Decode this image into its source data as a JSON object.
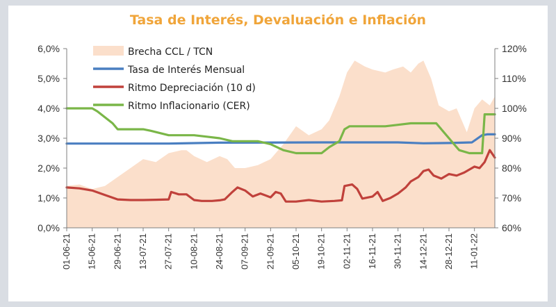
{
  "chart_data": {
    "type": "line",
    "title": "Tasa de Interés, Devaluación e Inflación",
    "x": [
      "01-06-21",
      "15-06-21",
      "29-06-21",
      "13-07-21",
      "27-07-21",
      "10-08-21",
      "24-08-21",
      "07-09-21",
      "21-09-21",
      "05-10-21",
      "19-10-21",
      "02-11-21",
      "16-11-21",
      "30-11-21",
      "14-12-21",
      "28-12-21",
      "11-01-22"
    ],
    "x_end": 16.8,
    "y_left": {
      "ticks": [
        "0,0%",
        "1,0%",
        "2,0%",
        "3,0%",
        "4,0%",
        "5,0%",
        "6,0%"
      ],
      "range": [
        0,
        6
      ]
    },
    "y_right": {
      "ticks": [
        "60%",
        "70%",
        "80%",
        "90%",
        "100%",
        "110%",
        "120%"
      ],
      "range": [
        60,
        120
      ]
    },
    "series": [
      {
        "name": "Brecha CCL / TCN",
        "kind": "area",
        "axis": "right",
        "color": "#fbdfcb",
        "points": [
          [
            0,
            74
          ],
          [
            0.5,
            74.5
          ],
          [
            1,
            73
          ],
          [
            1.5,
            74
          ],
          [
            2,
            77
          ],
          [
            2.5,
            80
          ],
          [
            3,
            83
          ],
          [
            3.5,
            82
          ],
          [
            4,
            85
          ],
          [
            4.5,
            86
          ],
          [
            4.7,
            86
          ],
          [
            5,
            84
          ],
          [
            5.5,
            82
          ],
          [
            6,
            84
          ],
          [
            6.3,
            83
          ],
          [
            6.6,
            80
          ],
          [
            7,
            80
          ],
          [
            7.5,
            81
          ],
          [
            8,
            83
          ],
          [
            8.5,
            88
          ],
          [
            9,
            94
          ],
          [
            9.5,
            91
          ],
          [
            10,
            93
          ],
          [
            10.3,
            96
          ],
          [
            10.7,
            104
          ],
          [
            11,
            112
          ],
          [
            11.3,
            116
          ],
          [
            11.7,
            114
          ],
          [
            12,
            113
          ],
          [
            12.5,
            112
          ],
          [
            12.8,
            113
          ],
          [
            13.2,
            114
          ],
          [
            13.5,
            112
          ],
          [
            13.8,
            115
          ],
          [
            14,
            116
          ],
          [
            14.3,
            110
          ],
          [
            14.6,
            101
          ],
          [
            15,
            99
          ],
          [
            15.3,
            100
          ],
          [
            15.7,
            92
          ],
          [
            16,
            100
          ],
          [
            16.3,
            103
          ],
          [
            16.6,
            101
          ],
          [
            16.8,
            104
          ]
        ]
      },
      {
        "name": "Tasa de Interés Mensual",
        "kind": "line",
        "axis": "left",
        "color": "#4a7fc1",
        "points": [
          [
            0,
            2.82
          ],
          [
            4,
            2.82
          ],
          [
            6,
            2.85
          ],
          [
            10,
            2.86
          ],
          [
            13,
            2.86
          ],
          [
            14,
            2.83
          ],
          [
            15,
            2.84
          ],
          [
            15.9,
            2.86
          ],
          [
            16.3,
            3.1
          ],
          [
            16.5,
            3.13
          ],
          [
            16.8,
            3.13
          ]
        ]
      },
      {
        "name": "Ritmo Depreciación (10 d)",
        "kind": "line",
        "axis": "left",
        "color": "#c0413b",
        "points": [
          [
            0,
            1.35
          ],
          [
            0.5,
            1.32
          ],
          [
            1,
            1.25
          ],
          [
            1.5,
            1.1
          ],
          [
            2,
            0.95
          ],
          [
            2.5,
            0.93
          ],
          [
            3,
            0.93
          ],
          [
            3.5,
            0.94
          ],
          [
            4,
            0.95
          ],
          [
            4.1,
            1.2
          ],
          [
            4.4,
            1.12
          ],
          [
            4.7,
            1.12
          ],
          [
            5,
            0.93
          ],
          [
            5.3,
            0.9
          ],
          [
            5.7,
            0.9
          ],
          [
            6,
            0.92
          ],
          [
            6.2,
            0.95
          ],
          [
            6.5,
            1.2
          ],
          [
            6.7,
            1.35
          ],
          [
            7,
            1.25
          ],
          [
            7.3,
            1.05
          ],
          [
            7.6,
            1.15
          ],
          [
            8,
            1.02
          ],
          [
            8.2,
            1.2
          ],
          [
            8.4,
            1.15
          ],
          [
            8.6,
            0.88
          ],
          [
            9,
            0.88
          ],
          [
            9.5,
            0.93
          ],
          [
            10,
            0.88
          ],
          [
            10.5,
            0.9
          ],
          [
            10.8,
            0.92
          ],
          [
            10.9,
            1.4
          ],
          [
            11.2,
            1.45
          ],
          [
            11.4,
            1.3
          ],
          [
            11.6,
            0.98
          ],
          [
            12,
            1.05
          ],
          [
            12.2,
            1.2
          ],
          [
            12.4,
            0.9
          ],
          [
            12.7,
            1.0
          ],
          [
            13,
            1.15
          ],
          [
            13.3,
            1.35
          ],
          [
            13.5,
            1.55
          ],
          [
            13.8,
            1.7
          ],
          [
            14,
            1.9
          ],
          [
            14.2,
            1.95
          ],
          [
            14.4,
            1.75
          ],
          [
            14.7,
            1.65
          ],
          [
            15,
            1.8
          ],
          [
            15.3,
            1.75
          ],
          [
            15.6,
            1.85
          ],
          [
            16,
            2.05
          ],
          [
            16.2,
            2.0
          ],
          [
            16.4,
            2.2
          ],
          [
            16.6,
            2.6
          ],
          [
            16.8,
            2.35
          ]
        ]
      },
      {
        "name": "Ritmo Inflacionario (CER)",
        "kind": "line",
        "axis": "right",
        "color": "#7ab648",
        "points": [
          [
            0,
            100
          ],
          [
            1,
            100
          ],
          [
            1.2,
            99
          ],
          [
            1.5,
            97
          ],
          [
            1.8,
            95
          ],
          [
            2,
            93
          ],
          [
            3,
            93
          ],
          [
            3.3,
            92.5
          ],
          [
            4,
            91
          ],
          [
            5,
            91
          ],
          [
            5.5,
            90.5
          ],
          [
            6,
            90
          ],
          [
            6.5,
            89
          ],
          [
            7,
            89
          ],
          [
            7.5,
            89
          ],
          [
            8,
            88
          ],
          [
            8.5,
            86
          ],
          [
            9,
            85
          ],
          [
            10,
            85
          ],
          [
            10.3,
            87
          ],
          [
            10.7,
            89
          ],
          [
            10.9,
            93
          ],
          [
            11.1,
            94
          ],
          [
            12,
            94
          ],
          [
            12.5,
            94
          ],
          [
            13,
            94.5
          ],
          [
            13.5,
            95
          ],
          [
            14,
            95
          ],
          [
            14.5,
            95
          ],
          [
            14.7,
            93
          ],
          [
            15,
            90
          ],
          [
            15.2,
            88
          ],
          [
            15.4,
            86
          ],
          [
            15.8,
            85
          ],
          [
            16,
            85
          ],
          [
            16.3,
            85
          ],
          [
            16.4,
            98
          ],
          [
            16.8,
            98
          ]
        ]
      }
    ],
    "legend": [
      "Brecha CCL / TCN",
      "Tasa de Interés Mensual",
      "Ritmo Depreciación (10 d)",
      "Ritmo Inflacionario (CER)"
    ],
    "legend_position": "top-left",
    "grid": false
  }
}
